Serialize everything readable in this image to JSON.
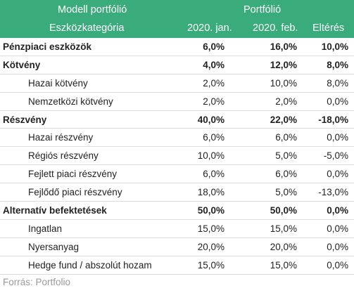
{
  "header": {
    "row1": {
      "left": "Modell portfólió",
      "right": "Portfólió"
    },
    "row2": {
      "category": "Eszközkategória",
      "col1": "2020. jan.",
      "col2": "2020. feb.",
      "col3": "Eltérés"
    }
  },
  "rows": [
    {
      "label": "Pénzpiaci eszközök",
      "v1": "6,0%",
      "v2": "16,0%",
      "v3": "10,0%",
      "main": true
    },
    {
      "label": "Kötvény",
      "v1": "4,0%",
      "v2": "12,0%",
      "v3": "8,0%",
      "main": true
    },
    {
      "label": "Hazai kötvény",
      "v1": "2,0%",
      "v2": "10,0%",
      "v3": "8,0%",
      "main": false
    },
    {
      "label": "Nemzetközi kötvény",
      "v1": "2,0%",
      "v2": "2,0%",
      "v3": "0,0%",
      "main": false
    },
    {
      "label": "Részvény",
      "v1": "40,0%",
      "v2": "22,0%",
      "v3": "-18,0%",
      "main": true
    },
    {
      "label": "Hazai részvény",
      "v1": "6,0%",
      "v2": "6,0%",
      "v3": "0,0%",
      "main": false
    },
    {
      "label": "Régiós részvény",
      "v1": "10,0%",
      "v2": "5,0%",
      "v3": "-5,0%",
      "main": false
    },
    {
      "label": "Fejlett piaci részvény",
      "v1": "6,0%",
      "v2": "6,0%",
      "v3": "0,0%",
      "main": false
    },
    {
      "label": "Fejlődő piaci részvény",
      "v1": "18,0%",
      "v2": "5,0%",
      "v3": "-13,0%",
      "main": false
    },
    {
      "label": "Alternatív befektetések",
      "v1": "50,0%",
      "v2": "50,0%",
      "v3": "0,0%",
      "main": true
    },
    {
      "label": "Ingatlan",
      "v1": "15,0%",
      "v2": "15,0%",
      "v3": "0,0%",
      "main": false
    },
    {
      "label": "Nyersanyag",
      "v1": "20,0%",
      "v2": "20,0%",
      "v3": "0,0%",
      "main": false
    },
    {
      "label": "Hedge fund / abszolút hozam",
      "v1": "15,0%",
      "v2": "15,0%",
      "v3": "0,0%",
      "main": false
    }
  ],
  "source": "Forrás: Portfolio",
  "colors": {
    "header_bg": "#3aab7a",
    "header_text": "#ffffff",
    "source_text": "#9a9a9a"
  }
}
